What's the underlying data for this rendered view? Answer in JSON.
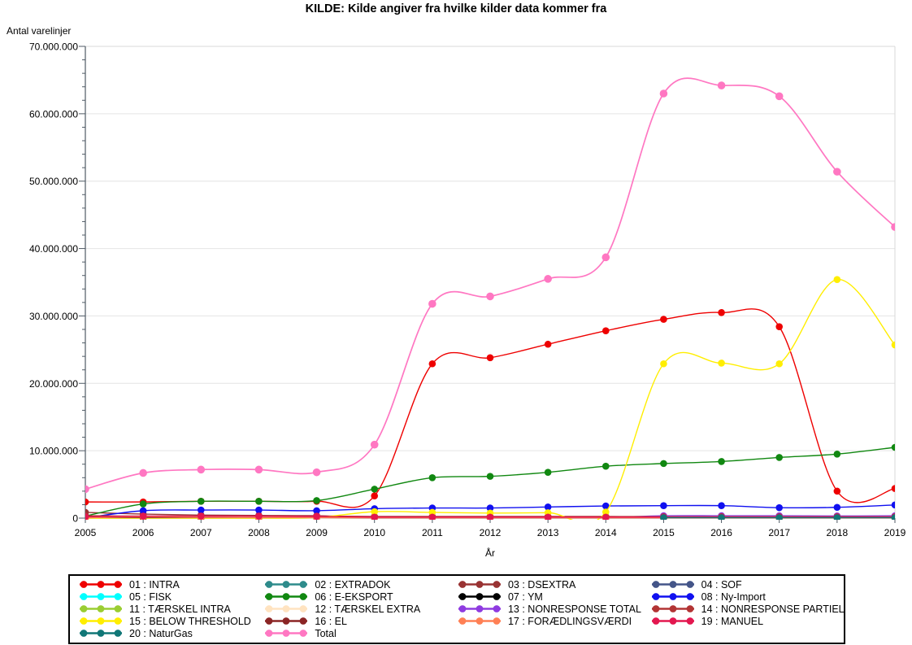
{
  "title": "KILDE: Kilde angiver fra hvilke kilder data kommer fra",
  "chart_data": {
    "type": "line",
    "title": "KILDE: Kilde angiver fra hvilke kilder data kommer fra",
    "xlabel": "År",
    "ylabel": "Antal varelinjer",
    "x": [
      2005,
      2006,
      2007,
      2008,
      2009,
      2010,
      2011,
      2012,
      2013,
      2014,
      2015,
      2016,
      2017,
      2018,
      2019
    ],
    "ylim": [
      0,
      70000000
    ],
    "y_major_step": 10000000,
    "y_minor_step": 2000000,
    "y_tick_labels": [
      "0",
      "10.000.000",
      "20.000.000",
      "30.000.000",
      "40.000.000",
      "50.000.000",
      "60.000.000",
      "70.000.000"
    ],
    "grid": "horizontal-major",
    "legend_position": "bottom",
    "curve": "smooth-spline",
    "series": [
      {
        "id": "01",
        "label": "01 : INTRA",
        "color": "#ee0000",
        "values": [
          2400000,
          2400000,
          2500000,
          2500000,
          2500000,
          3300000,
          22900000,
          23800000,
          25800000,
          27800000,
          29500000,
          30500000,
          28400000,
          4000000,
          4400000
        ]
      },
      {
        "id": "02",
        "label": "02 : EXTRADOK",
        "color": "#2e8b8b",
        "values": [
          50000,
          50000,
          50000,
          50000,
          50000,
          50000,
          50000,
          50000,
          50000,
          50000,
          50000,
          50000,
          50000,
          50000,
          50000
        ]
      },
      {
        "id": "03",
        "label": "03 : DSEXTRA",
        "color": "#993333",
        "values": [
          850000,
          600000,
          450000,
          400000,
          350000,
          120000,
          80000,
          80000,
          80000,
          80000,
          80000,
          80000,
          80000,
          80000,
          80000
        ]
      },
      {
        "id": "04",
        "label": "04 : SOF",
        "color": "#445588",
        "values": [
          20000,
          20000,
          20000,
          20000,
          20000,
          20000,
          20000,
          20000,
          20000,
          20000,
          20000,
          20000,
          20000,
          20000,
          20000
        ]
      },
      {
        "id": "05",
        "label": "05 : FISK",
        "color": "#00ffff",
        "values": [
          30000,
          30000,
          30000,
          30000,
          30000,
          30000,
          30000,
          30000,
          30000,
          30000,
          30000,
          30000,
          30000,
          30000,
          30000
        ]
      },
      {
        "id": "06",
        "label": "06 : E-EKSPORT",
        "color": "#118811",
        "values": [
          300000,
          2100000,
          2500000,
          2500000,
          2600000,
          4300000,
          6000000,
          6200000,
          6800000,
          7700000,
          8100000,
          8400000,
          9000000,
          9500000,
          10500000
        ]
      },
      {
        "id": "07",
        "label": "07 : YM",
        "color": "#000000",
        "values": [
          20000,
          20000,
          20000,
          20000,
          20000,
          20000,
          20000,
          20000,
          20000,
          20000,
          20000,
          20000,
          20000,
          20000,
          20000
        ]
      },
      {
        "id": "08",
        "label": "08 : Ny-Import",
        "color": "#1010f0",
        "values": [
          50000,
          1100000,
          1200000,
          1200000,
          1100000,
          1400000,
          1500000,
          1500000,
          1650000,
          1800000,
          1850000,
          1850000,
          1550000,
          1600000,
          1950000
        ]
      },
      {
        "id": "11",
        "label": "11 : TÆRSKEL INTRA",
        "color": "#9acd32",
        "values": [
          30000,
          30000,
          30000,
          30000,
          30000,
          30000,
          30000,
          30000,
          30000,
          30000,
          30000,
          30000,
          30000,
          30000,
          30000
        ]
      },
      {
        "id": "12",
        "label": "12 : TÆRSKEL EXTRA",
        "color": "#ffe3c0",
        "values": [
          20000,
          20000,
          20000,
          20000,
          20000,
          20000,
          20000,
          20000,
          20000,
          20000,
          20000,
          20000,
          20000,
          20000,
          20000
        ]
      },
      {
        "id": "13",
        "label": "13 : NONRESPONSE TOTAL",
        "color": "#8f3be0",
        "values": [
          null,
          null,
          null,
          null,
          null,
          null,
          null,
          null,
          null,
          50000,
          350000,
          350000,
          350000,
          320000,
          350000
        ]
      },
      {
        "id": "14",
        "label": "14 : NONRESPONSE PARTIEL",
        "color": "#b23434",
        "values": [
          350000,
          300000,
          300000,
          300000,
          300000,
          250000,
          250000,
          250000,
          250000,
          250000,
          200000,
          200000,
          200000,
          200000,
          200000
        ]
      },
      {
        "id": "15",
        "label": "15 : BELOW THRESHOLD",
        "color": "#ffee00",
        "values": [
          0,
          0,
          0,
          0,
          100000,
          950000,
          850000,
          750000,
          800000,
          900000,
          22900000,
          23000000,
          22900000,
          35400000,
          25700000
        ]
      },
      {
        "id": "16",
        "label": "16 : EL",
        "color": "#8b2525",
        "values": [
          100000,
          80000,
          80000,
          80000,
          80000,
          50000,
          50000,
          50000,
          50000,
          50000,
          50000,
          50000,
          50000,
          50000,
          50000
        ]
      },
      {
        "id": "17",
        "label": "17 : FORÆDLINGSVÆRDI",
        "color": "#ff8055",
        "values": [
          50000,
          200000,
          120000,
          100000,
          80000,
          50000,
          50000,
          50000,
          50000,
          50000,
          50000,
          50000,
          50000,
          50000,
          50000
        ]
      },
      {
        "id": "19",
        "label": "19 : MANUEL",
        "color": "#e3174f",
        "values": [
          200000,
          300000,
          300000,
          300000,
          250000,
          150000,
          150000,
          150000,
          150000,
          150000,
          150000,
          150000,
          150000,
          150000,
          150000
        ]
      },
      {
        "id": "20",
        "label": "20 : NaturGas",
        "color": "#117777",
        "values": [
          null,
          null,
          null,
          null,
          null,
          null,
          null,
          null,
          null,
          null,
          70000,
          70000,
          70000,
          70000,
          70000
        ]
      },
      {
        "id": "total",
        "label": "Total",
        "color": "#ff77c2",
        "values": [
          4300000,
          6700000,
          7200000,
          7200000,
          6800000,
          10900000,
          31800000,
          32900000,
          35500000,
          38700000,
          63000000,
          64200000,
          62600000,
          51400000,
          43200000
        ]
      }
    ]
  }
}
